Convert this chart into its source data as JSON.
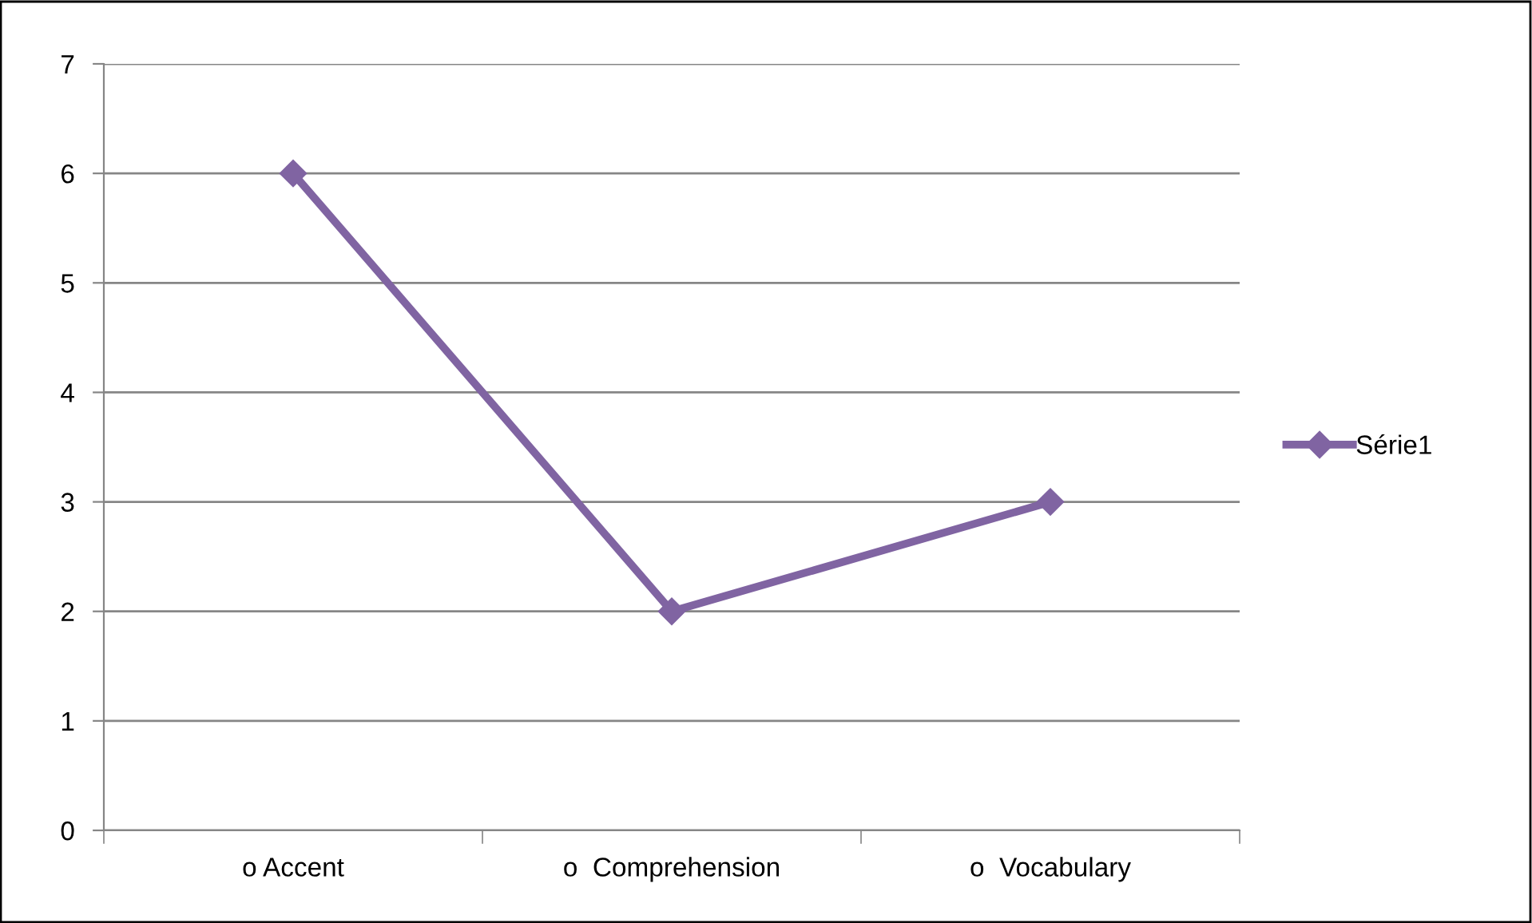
{
  "chart_data": {
    "type": "line",
    "categories": [
      "o Accent",
      "o  Comprehension",
      "o  Vocabulary"
    ],
    "series": [
      {
        "name": "Série1",
        "color": "#8064a2",
        "values": [
          6,
          2,
          3
        ]
      }
    ],
    "ylim": [
      0,
      7
    ],
    "yticks": [
      0,
      1,
      2,
      3,
      4,
      5,
      6,
      7
    ],
    "grid": "y",
    "legend": "right",
    "marker": "diamond",
    "line_style": "solid"
  }
}
